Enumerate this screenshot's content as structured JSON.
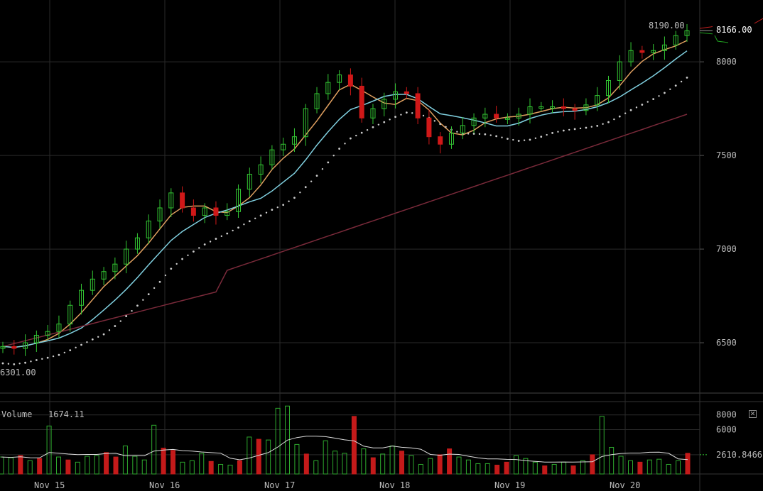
{
  "chart_data": [
    {
      "type": "candlestick",
      "x_axis_labels": [
        "Nov 15",
        "Nov 16",
        "Nov 17",
        "Nov 18",
        "Nov 19",
        "Nov 20"
      ],
      "y_ticks": [
        6500,
        7000,
        7500,
        8000
      ],
      "ylim": [
        6235,
        8330
      ],
      "high_label": "8190.00",
      "low_label": "6301.00",
      "last_price_label": "8166.00",
      "last_price": 8166,
      "indicators": [
        "moving average (orange)",
        "moving average (light blue)",
        "moving average (dark red)",
        "parabolic SAR (dotted)"
      ],
      "series_close_approx": [
        6480,
        6470,
        6500,
        6540,
        6560,
        6600,
        6700,
        6780,
        6840,
        6880,
        6920,
        7000,
        7060,
        7150,
        7220,
        7300,
        7220,
        7180,
        7220,
        7180,
        7200,
        7320,
        7400,
        7450,
        7530,
        7560,
        7600,
        7750,
        7830,
        7890,
        7930,
        7870,
        7700,
        7750,
        7800,
        7840,
        7830,
        7700,
        7600,
        7560,
        7620,
        7660,
        7700,
        7720,
        7700,
        7700,
        7720,
        7760,
        7760,
        7760,
        7750,
        7740,
        7770,
        7820,
        7900,
        8000,
        8060,
        8050,
        8060,
        8090,
        8140,
        8166
      ]
    },
    {
      "type": "bar",
      "title": "Volume",
      "value_label": "1674.11",
      "y_ticks": [
        6000,
        8000
      ],
      "ylim": [
        0,
        9800
      ],
      "average_label": "2610.8466",
      "values_approx": [
        2300,
        2200,
        2500,
        1800,
        2100,
        6500,
        2300,
        1900,
        1600,
        2400,
        2500,
        2900,
        2300,
        3800,
        2400,
        1900,
        6600,
        3500,
        3200,
        1600,
        1800,
        2800,
        1700,
        1300,
        1200,
        1800,
        5000,
        4700,
        4600,
        8900,
        9200,
        4000,
        2700,
        1800,
        4500,
        3100,
        2800,
        7800,
        3400,
        2200,
        2700,
        3800,
        3100,
        2500,
        1300,
        2100,
        2600,
        3400,
        2300,
        1900,
        1400,
        1400,
        1200,
        1600,
        2500,
        2100,
        1600,
        1100,
        1300,
        1600,
        1100,
        1800,
        2600,
        7800,
        3600,
        2400,
        1800,
        1600,
        1900,
        2000,
        1300,
        1800,
        2800
      ]
    }
  ],
  "ui": {
    "close_icon_glyph": "✕",
    "volume_title": "Volume"
  }
}
